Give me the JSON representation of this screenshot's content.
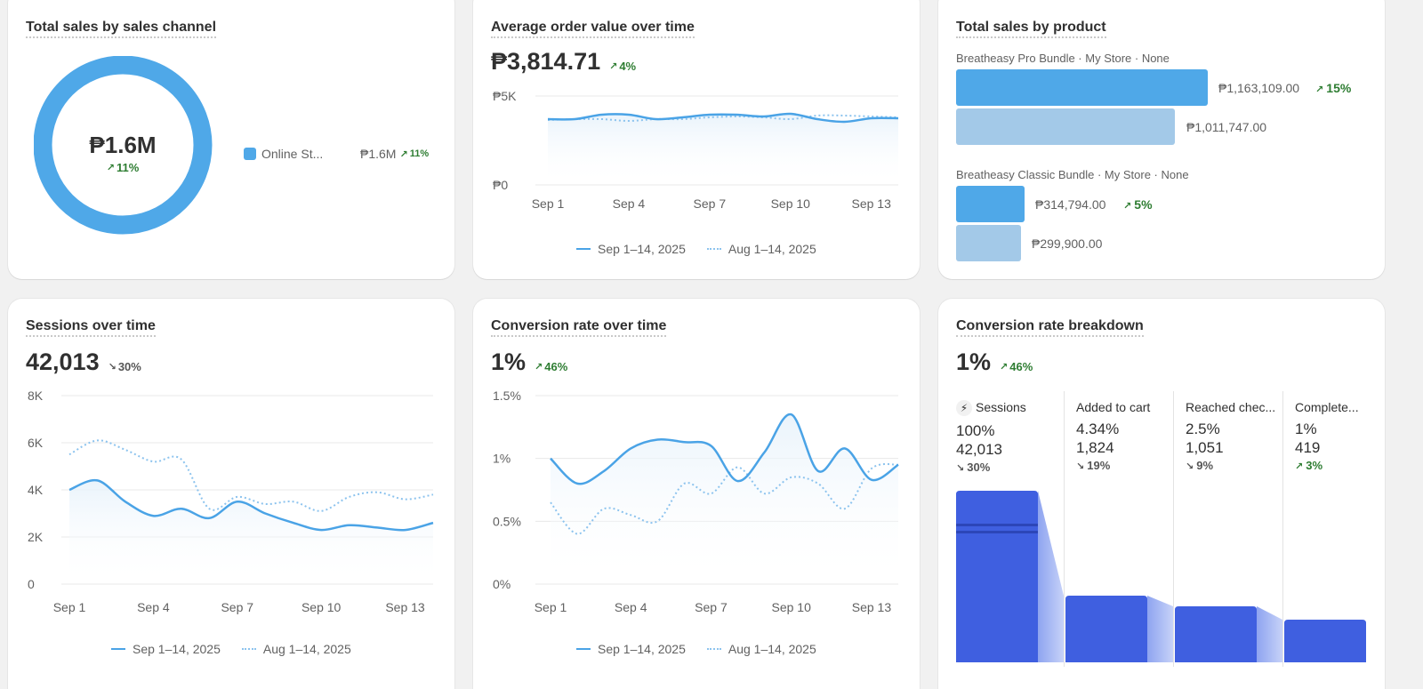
{
  "cards": {
    "sales_channel": {
      "title": "Total sales by sales channel",
      "center_value": "₱1.6M",
      "center_trend": "11%",
      "legend_label": "Online St...",
      "legend_value": "₱1.6M",
      "legend_trend": "11%",
      "color": "#4fa8e8"
    },
    "aov": {
      "title": "Average order value over time",
      "value": "₱3,814.71",
      "trend": "4%",
      "y_ticks": [
        "₱5K",
        "₱0"
      ],
      "x_ticks": [
        "Sep 1",
        "Sep 4",
        "Sep 7",
        "Sep 10",
        "Sep 13"
      ],
      "legend_current": "Sep 1–14, 2025",
      "legend_previous": "Aug 1–14, 2025"
    },
    "products": {
      "title": "Total sales by product",
      "items": [
        {
          "label": "Breatheasy Pro Bundle · My Store · None",
          "current": "₱1,163,109.00",
          "previous": "₱1,011,747.00",
          "trend": "15%"
        },
        {
          "label": "Breatheasy Classic Bundle · My Store · None",
          "current": "₱314,794.00",
          "previous": "₱299,900.00",
          "trend": "5%"
        }
      ]
    },
    "sessions": {
      "title": "Sessions over time",
      "value": "42,013",
      "trend": "30%",
      "y_ticks": [
        "8K",
        "6K",
        "4K",
        "2K",
        "0"
      ],
      "x_ticks": [
        "Sep 1",
        "Sep 4",
        "Sep 7",
        "Sep 10",
        "Sep 13"
      ],
      "legend_current": "Sep 1–14, 2025",
      "legend_previous": "Aug 1–14, 2025"
    },
    "conversion": {
      "title": "Conversion rate over time",
      "value": "1%",
      "trend": "46%",
      "y_ticks": [
        "1.5%",
        "1%",
        "0.5%",
        "0%"
      ],
      "x_ticks": [
        "Sep 1",
        "Sep 4",
        "Sep 7",
        "Sep 10",
        "Sep 13"
      ],
      "legend_current": "Sep 1–14, 2025",
      "legend_previous": "Aug 1–14, 2025"
    },
    "breakdown": {
      "title": "Conversion rate breakdown",
      "value": "1%",
      "trend": "46%",
      "steps": [
        {
          "label": "Sessions",
          "pct": "100%",
          "count": "42,013",
          "trend": "30%"
        },
        {
          "label": "Added to cart",
          "pct": "4.34%",
          "count": "1,824",
          "trend": "19%"
        },
        {
          "label": "Reached chec...",
          "pct": "2.5%",
          "count": "1,051",
          "trend": "9%"
        },
        {
          "label": "Complete...",
          "pct": "1%",
          "count": "419",
          "trend": "3%"
        }
      ]
    }
  },
  "chart_data": [
    {
      "type": "pie",
      "title": "Total sales by sales channel",
      "categories": [
        "Online St..."
      ],
      "values": [
        1.6
      ],
      "center_label": "₱1.6M"
    },
    {
      "type": "line",
      "title": "Average order value over time",
      "x": [
        "Sep 1",
        "Sep 2",
        "Sep 3",
        "Sep 4",
        "Sep 5",
        "Sep 6",
        "Sep 7",
        "Sep 8",
        "Sep 9",
        "Sep 10",
        "Sep 11",
        "Sep 12",
        "Sep 13",
        "Sep 14"
      ],
      "ylim": [
        0,
        5000
      ],
      "y_ticks": [
        "₱0",
        "₱5K"
      ],
      "series": [
        {
          "name": "Sep 1–14, 2025",
          "values": [
            3700,
            3700,
            3950,
            3950,
            3700,
            3800,
            3950,
            3950,
            3850,
            4000,
            3700,
            3550,
            3750,
            3750
          ]
        },
        {
          "name": "Aug 1–14, 2025",
          "values": [
            3650,
            3700,
            3700,
            3600,
            3700,
            3700,
            3800,
            3850,
            3800,
            3700,
            3900,
            3900,
            3850,
            3800
          ]
        }
      ]
    },
    {
      "type": "bar",
      "title": "Total sales by product",
      "categories": [
        "Breatheasy Pro Bundle · My Store · None",
        "Breatheasy Classic Bundle · My Store · None"
      ],
      "series": [
        {
          "name": "Sep 1–14, 2025",
          "values": [
            1163109,
            314794
          ]
        },
        {
          "name": "Aug 1–14, 2025",
          "values": [
            1011747,
            299900
          ]
        }
      ]
    },
    {
      "type": "line",
      "title": "Sessions over time",
      "x": [
        "Sep 1",
        "Sep 2",
        "Sep 3",
        "Sep 4",
        "Sep 5",
        "Sep 6",
        "Sep 7",
        "Sep 8",
        "Sep 9",
        "Sep 10",
        "Sep 11",
        "Sep 12",
        "Sep 13",
        "Sep 14"
      ],
      "ylim": [
        0,
        8000
      ],
      "y_ticks": [
        "0",
        "2K",
        "4K",
        "6K",
        "8K"
      ],
      "series": [
        {
          "name": "Sep 1–14, 2025",
          "values": [
            4000,
            4400,
            3500,
            2900,
            3200,
            2800,
            3500,
            3000,
            2600,
            2300,
            2500,
            2400,
            2300,
            2600
          ]
        },
        {
          "name": "Aug 1–14, 2025",
          "values": [
            5500,
            6100,
            5700,
            5200,
            5300,
            3200,
            3700,
            3400,
            3500,
            3100,
            3700,
            3900,
            3600,
            3800
          ]
        }
      ]
    },
    {
      "type": "line",
      "title": "Conversion rate over time",
      "x": [
        "Sep 1",
        "Sep 2",
        "Sep 3",
        "Sep 4",
        "Sep 5",
        "Sep 6",
        "Sep 7",
        "Sep 8",
        "Sep 9",
        "Sep 10",
        "Sep 11",
        "Sep 12",
        "Sep 13",
        "Sep 14"
      ],
      "ylim": [
        0,
        1.5
      ],
      "y_ticks": [
        "0%",
        "0.5%",
        "1%",
        "1.5%"
      ],
      "series": [
        {
          "name": "Sep 1–14, 2025",
          "values": [
            1.0,
            0.8,
            0.9,
            1.08,
            1.15,
            1.13,
            1.1,
            0.82,
            1.05,
            1.35,
            0.9,
            1.08,
            0.83,
            0.95
          ]
        },
        {
          "name": "Aug 1–14, 2025",
          "values": [
            0.65,
            0.4,
            0.6,
            0.55,
            0.5,
            0.8,
            0.72,
            0.93,
            0.72,
            0.85,
            0.8,
            0.6,
            0.92,
            0.95
          ]
        }
      ]
    },
    {
      "type": "bar",
      "title": "Conversion rate breakdown",
      "categories": [
        "Sessions",
        "Added to cart",
        "Reached chec...",
        "Complete..."
      ],
      "values": [
        100,
        4.34,
        2.5,
        1
      ]
    }
  ]
}
